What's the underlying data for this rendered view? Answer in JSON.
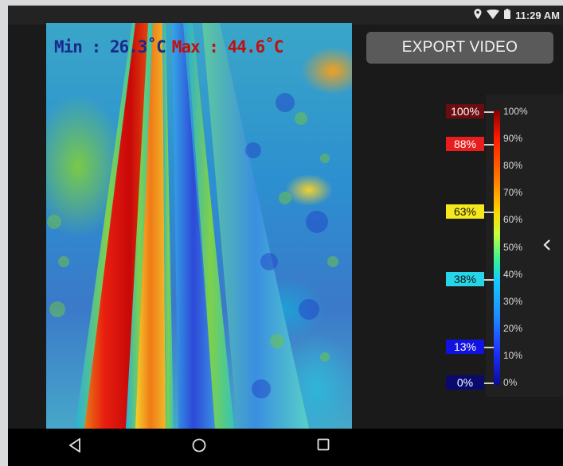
{
  "status_bar": {
    "time": "11:29 AM",
    "icons": [
      "location-icon",
      "wifi-icon",
      "battery-icon"
    ]
  },
  "thermal_view": {
    "min_label": "Min : 26.3˚C",
    "max_label": "Max : 44.6˚C"
  },
  "export_button": {
    "label": "EXPORT VIDEO"
  },
  "scale": {
    "labels": [
      "100%",
      "90%",
      "80%",
      "70%",
      "60%",
      "50%",
      "40%",
      "30%",
      "20%",
      "10%",
      "0%"
    ],
    "markers": [
      {
        "label": "100%",
        "bg": "#6b0d10",
        "color": "#ffffff"
      },
      {
        "label": "88%",
        "bg": "#e81e1e",
        "color": "#ffffff"
      },
      {
        "label": "63%",
        "bg": "#f5e81c",
        "color": "#111111"
      },
      {
        "label": "38%",
        "bg": "#26d6e8",
        "color": "#111111"
      },
      {
        "label": "13%",
        "bg": "#1212e0",
        "color": "#ffffff"
      },
      {
        "label": "0%",
        "bg": "#0a0a6e",
        "color": "#ffffff"
      }
    ]
  },
  "colors": {
    "accent_red": "#c01010",
    "accent_navy": "#1a2a8a"
  },
  "nav_bar": {
    "buttons": [
      "back-icon",
      "home-icon",
      "recents-icon"
    ]
  }
}
